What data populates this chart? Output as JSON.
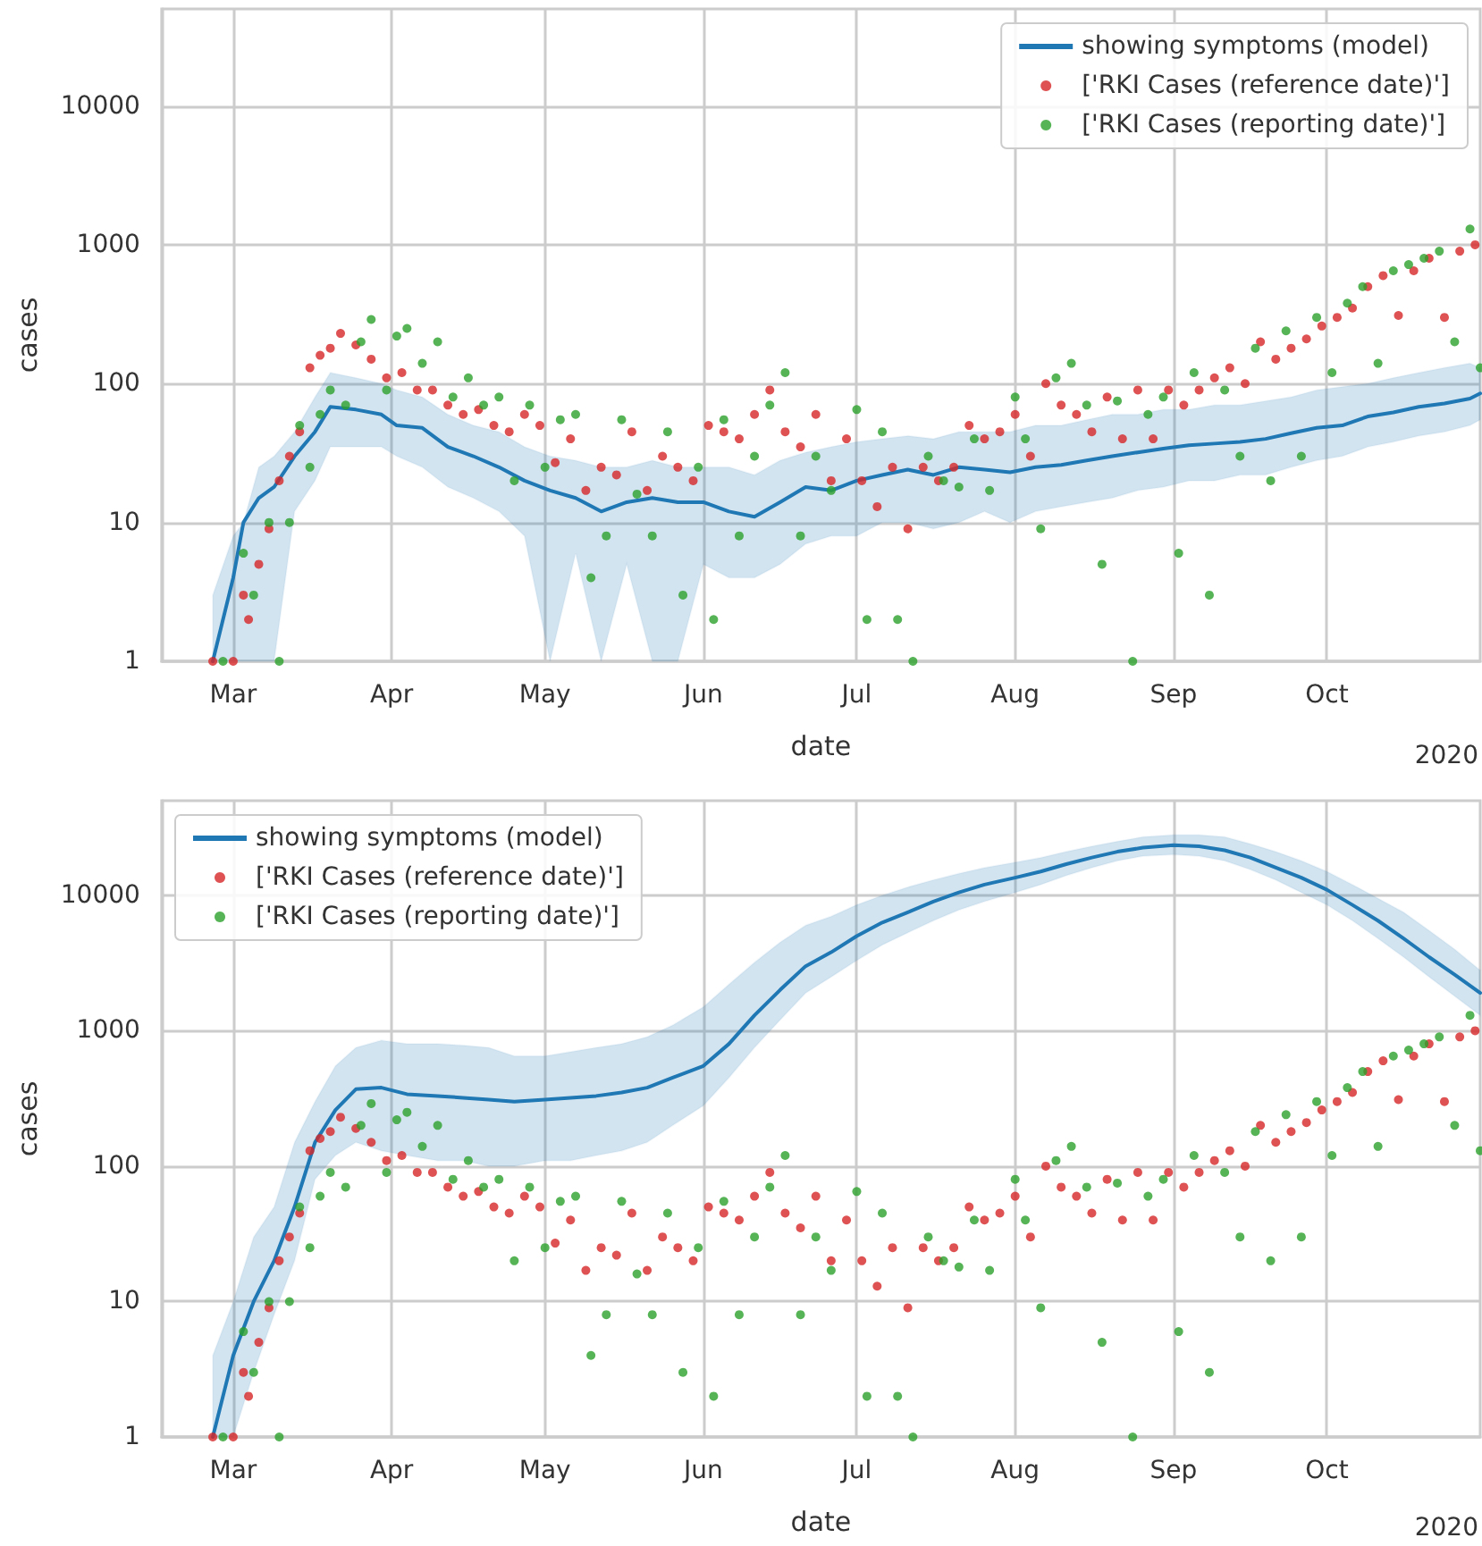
{
  "chart_data": [
    {
      "type": "line",
      "xlabel": "date",
      "ylabel": "cases",
      "annotations": [
        "2020"
      ],
      "log": true,
      "grid": true,
      "legend": "top right",
      "xlim": [
        "2020-02-16",
        "2020-10-31"
      ],
      "xticks": [
        {
          "value": "2020-03-01",
          "label": "Mar"
        },
        {
          "value": "2020-04-01",
          "label": "Apr"
        },
        {
          "value": "2020-05-01",
          "label": "May"
        },
        {
          "value": "2020-06-01",
          "label": "Jun"
        },
        {
          "value": "2020-07-01",
          "label": "Jul"
        },
        {
          "value": "2020-08-01",
          "label": "Aug"
        },
        {
          "value": "2020-09-01",
          "label": "Sep"
        },
        {
          "value": "2020-10-01",
          "label": "Oct"
        }
      ],
      "ylim": [
        1,
        50000
      ],
      "yticks": [
        1,
        10,
        100,
        1000,
        10000
      ],
      "series": [
        {
          "name": "showing symptoms (model)",
          "color": "#1f77b4",
          "x": [
            "2020-02-26",
            "2020-03-01",
            "2020-03-03",
            "2020-03-06",
            "2020-03-09",
            "2020-03-13",
            "2020-03-17",
            "2020-03-20",
            "2020-03-25",
            "2020-03-30",
            "2020-04-02",
            "2020-04-07",
            "2020-04-12",
            "2020-04-17",
            "2020-04-22",
            "2020-04-27",
            "2020-05-02",
            "2020-05-07",
            "2020-05-12",
            "2020-05-17",
            "2020-05-22",
            "2020-05-27",
            "2020-06-01",
            "2020-06-06",
            "2020-06-11",
            "2020-06-16",
            "2020-06-21",
            "2020-06-26",
            "2020-07-01",
            "2020-07-06",
            "2020-07-11",
            "2020-07-16",
            "2020-07-21",
            "2020-07-26",
            "2020-07-31",
            "2020-08-05",
            "2020-08-10",
            "2020-08-15",
            "2020-08-20",
            "2020-08-25",
            "2020-08-30",
            "2020-09-04",
            "2020-09-09",
            "2020-09-14",
            "2020-09-19",
            "2020-09-24",
            "2020-09-29",
            "2020-10-04",
            "2020-10-09",
            "2020-10-14",
            "2020-10-19",
            "2020-10-24",
            "2020-10-29",
            "2020-10-31"
          ],
          "values": [
            1,
            4,
            10,
            15,
            18,
            30,
            45,
            68,
            65,
            60,
            50,
            48,
            35,
            30,
            25,
            20,
            17,
            15,
            12,
            14,
            15,
            14,
            14,
            12,
            11,
            14,
            18,
            17,
            20,
            22,
            24,
            22,
            25,
            24,
            23,
            25,
            26,
            28,
            30,
            32,
            34,
            36,
            37,
            38,
            40,
            44,
            48,
            50,
            58,
            62,
            68,
            72,
            78,
            85
          ],
          "lower": [
            1,
            1,
            1,
            1,
            1,
            12,
            20,
            35,
            35,
            35,
            30,
            25,
            18,
            15,
            12,
            8,
            1,
            6,
            1,
            5,
            1,
            1,
            5,
            4,
            4,
            5,
            7,
            8,
            8,
            10,
            10,
            9,
            10,
            12,
            10,
            12,
            13,
            14,
            15,
            17,
            18,
            20,
            20,
            22,
            22,
            25,
            28,
            30,
            35,
            38,
            42,
            45,
            50,
            55
          ],
          "upper": [
            3,
            8,
            10,
            25,
            30,
            45,
            80,
            120,
            110,
            100,
            90,
            80,
            60,
            50,
            45,
            35,
            30,
            28,
            25,
            25,
            28,
            25,
            25,
            25,
            22,
            28,
            32,
            35,
            38,
            40,
            42,
            40,
            45,
            45,
            45,
            50,
            50,
            55,
            60,
            60,
            65,
            65,
            70,
            70,
            75,
            80,
            90,
            95,
            100,
            110,
            120,
            130,
            140,
            130
          ]
        },
        {
          "name": "['RKI Cases (reference date)']",
          "type": "scatter",
          "color": "#d62728",
          "x": [
            "2020-02-26",
            "2020-03-01",
            "2020-03-03",
            "2020-03-04",
            "2020-03-06",
            "2020-03-08",
            "2020-03-10",
            "2020-03-12",
            "2020-03-14",
            "2020-03-16",
            "2020-03-18",
            "2020-03-20",
            "2020-03-22",
            "2020-03-25",
            "2020-03-28",
            "2020-03-31",
            "2020-04-03",
            "2020-04-06",
            "2020-04-09",
            "2020-04-12",
            "2020-04-15",
            "2020-04-18",
            "2020-04-21",
            "2020-04-24",
            "2020-04-27",
            "2020-04-30",
            "2020-05-03",
            "2020-05-06",
            "2020-05-09",
            "2020-05-12",
            "2020-05-15",
            "2020-05-18",
            "2020-05-21",
            "2020-05-24",
            "2020-05-27",
            "2020-05-30",
            "2020-06-02",
            "2020-06-05",
            "2020-06-08",
            "2020-06-11",
            "2020-06-14",
            "2020-06-17",
            "2020-06-20",
            "2020-06-23",
            "2020-06-26",
            "2020-06-29",
            "2020-07-02",
            "2020-07-05",
            "2020-07-08",
            "2020-07-11",
            "2020-07-14",
            "2020-07-17",
            "2020-07-20",
            "2020-07-23",
            "2020-07-26",
            "2020-07-29",
            "2020-08-01",
            "2020-08-04",
            "2020-08-07",
            "2020-08-10",
            "2020-08-13",
            "2020-08-16",
            "2020-08-19",
            "2020-08-22",
            "2020-08-25",
            "2020-08-28",
            "2020-08-31",
            "2020-09-03",
            "2020-09-06",
            "2020-09-09",
            "2020-09-12",
            "2020-09-15",
            "2020-09-18",
            "2020-09-21",
            "2020-09-24",
            "2020-09-27",
            "2020-09-30",
            "2020-10-03",
            "2020-10-06",
            "2020-10-09",
            "2020-10-12",
            "2020-10-15",
            "2020-10-18",
            "2020-10-21",
            "2020-10-24",
            "2020-10-27",
            "2020-10-30"
          ],
          "values": [
            1,
            1,
            3,
            2,
            5,
            9,
            20,
            30,
            45,
            130,
            160,
            180,
            230,
            190,
            150,
            110,
            120,
            90,
            90,
            70,
            60,
            65,
            50,
            45,
            60,
            50,
            27,
            40,
            17,
            25,
            22,
            45,
            17,
            30,
            25,
            20,
            50,
            45,
            40,
            60,
            90,
            45,
            35,
            60,
            20,
            40,
            20,
            13,
            25,
            9,
            25,
            20,
            25,
            50,
            40,
            45,
            60,
            30,
            100,
            70,
            60,
            45,
            80,
            40,
            90,
            40,
            90,
            70,
            90,
            110,
            130,
            100,
            200,
            150,
            180,
            210,
            260,
            300,
            350,
            500,
            600,
            310,
            650,
            800,
            300,
            900,
            1000
          ]
        },
        {
          "name": "['RKI Cases (reporting date)']",
          "type": "scatter",
          "color": "#2ca02c",
          "x": [
            "2020-02-28",
            "2020-03-03",
            "2020-03-05",
            "2020-03-08",
            "2020-03-10",
            "2020-03-12",
            "2020-03-14",
            "2020-03-16",
            "2020-03-18",
            "2020-03-20",
            "2020-03-23",
            "2020-03-26",
            "2020-03-28",
            "2020-03-31",
            "2020-04-02",
            "2020-04-04",
            "2020-04-07",
            "2020-04-10",
            "2020-04-13",
            "2020-04-16",
            "2020-04-19",
            "2020-04-22",
            "2020-04-25",
            "2020-04-28",
            "2020-05-01",
            "2020-05-04",
            "2020-05-07",
            "2020-05-10",
            "2020-05-13",
            "2020-05-16",
            "2020-05-19",
            "2020-05-22",
            "2020-05-25",
            "2020-05-28",
            "2020-05-31",
            "2020-06-03",
            "2020-06-05",
            "2020-06-08",
            "2020-06-11",
            "2020-06-14",
            "2020-06-17",
            "2020-06-20",
            "2020-06-23",
            "2020-06-26",
            "2020-07-01",
            "2020-07-03",
            "2020-07-06",
            "2020-07-09",
            "2020-07-12",
            "2020-07-15",
            "2020-07-18",
            "2020-07-21",
            "2020-07-24",
            "2020-07-27",
            "2020-08-01",
            "2020-08-03",
            "2020-08-06",
            "2020-08-09",
            "2020-08-12",
            "2020-08-15",
            "2020-08-18",
            "2020-08-21",
            "2020-08-24",
            "2020-08-27",
            "2020-08-30",
            "2020-09-02",
            "2020-09-05",
            "2020-09-08",
            "2020-09-11",
            "2020-09-14",
            "2020-09-17",
            "2020-09-20",
            "2020-09-23",
            "2020-09-26",
            "2020-09-29",
            "2020-10-02",
            "2020-10-05",
            "2020-10-08",
            "2020-10-11",
            "2020-10-14",
            "2020-10-17",
            "2020-10-20",
            "2020-10-23",
            "2020-10-26",
            "2020-10-29",
            "2020-10-31"
          ],
          "values": [
            1,
            6,
            3,
            10,
            1,
            10,
            50,
            25,
            60,
            90,
            70,
            200,
            290,
            90,
            220,
            250,
            140,
            200,
            80,
            110,
            70,
            80,
            20,
            70,
            25,
            55,
            60,
            4,
            8,
            55,
            16,
            8,
            45,
            3,
            25,
            2,
            55,
            8,
            30,
            70,
            120,
            8,
            30,
            17,
            65,
            2,
            45,
            2,
            1,
            30,
            20,
            18,
            40,
            17,
            80,
            40,
            9,
            110,
            140,
            70,
            5,
            75,
            1,
            60,
            80,
            6,
            120,
            3,
            90,
            30,
            180,
            20,
            240,
            30,
            300,
            120,
            380,
            500,
            140,
            650,
            720,
            800,
            900,
            200,
            1300,
            130
          ]
        }
      ]
    },
    {
      "type": "line",
      "xlabel": "date",
      "ylabel": "cases",
      "annotations": [
        "2020"
      ],
      "log": true,
      "grid": true,
      "legend": "top left",
      "xlim": [
        "2020-02-16",
        "2020-10-31"
      ],
      "xticks": [
        {
          "value": "2020-03-01",
          "label": "Mar"
        },
        {
          "value": "2020-04-01",
          "label": "Apr"
        },
        {
          "value": "2020-05-01",
          "label": "May"
        },
        {
          "value": "2020-06-01",
          "label": "Jun"
        },
        {
          "value": "2020-07-01",
          "label": "Jul"
        },
        {
          "value": "2020-08-01",
          "label": "Aug"
        },
        {
          "value": "2020-09-01",
          "label": "Sep"
        },
        {
          "value": "2020-10-01",
          "label": "Oct"
        }
      ],
      "ylim": [
        1,
        50000
      ],
      "yticks": [
        1,
        10,
        100,
        1000,
        10000
      ],
      "series": [
        {
          "name": "showing symptoms (model)",
          "color": "#1f77b4",
          "x": [
            "2020-02-26",
            "2020-03-01",
            "2020-03-05",
            "2020-03-09",
            "2020-03-13",
            "2020-03-17",
            "2020-03-21",
            "2020-03-25",
            "2020-03-30",
            "2020-04-04",
            "2020-04-10",
            "2020-04-15",
            "2020-04-20",
            "2020-04-25",
            "2020-05-01",
            "2020-05-06",
            "2020-05-11",
            "2020-05-16",
            "2020-05-21",
            "2020-05-26",
            "2020-06-01",
            "2020-06-06",
            "2020-06-11",
            "2020-06-16",
            "2020-06-21",
            "2020-06-26",
            "2020-07-01",
            "2020-07-06",
            "2020-07-11",
            "2020-07-16",
            "2020-07-21",
            "2020-07-26",
            "2020-08-01",
            "2020-08-06",
            "2020-08-11",
            "2020-08-16",
            "2020-08-21",
            "2020-08-26",
            "2020-09-01",
            "2020-09-06",
            "2020-09-11",
            "2020-09-16",
            "2020-09-21",
            "2020-09-26",
            "2020-10-01",
            "2020-10-06",
            "2020-10-11",
            "2020-10-16",
            "2020-10-21",
            "2020-10-26",
            "2020-10-31"
          ],
          "values": [
            1,
            4,
            10,
            20,
            50,
            150,
            260,
            370,
            380,
            340,
            330,
            320,
            310,
            300,
            310,
            320,
            330,
            350,
            380,
            450,
            550,
            800,
            1300,
            2000,
            3000,
            3800,
            5000,
            6300,
            7500,
            9000,
            10500,
            12000,
            13500,
            15000,
            17000,
            19000,
            21000,
            22500,
            23500,
            23000,
            21500,
            19000,
            16000,
            13500,
            11000,
            8500,
            6500,
            4800,
            3500,
            2600,
            1900
          ],
          "lower": [
            1,
            1,
            3,
            8,
            20,
            80,
            120,
            150,
            130,
            120,
            110,
            110,
            100,
            100,
            110,
            110,
            120,
            130,
            150,
            200,
            280,
            450,
            750,
            1200,
            1900,
            2500,
            3300,
            4300,
            5300,
            6500,
            7800,
            9000,
            10500,
            12000,
            14000,
            16000,
            18000,
            19500,
            20000,
            19500,
            18000,
            15500,
            13000,
            10500,
            8500,
            6500,
            4800,
            3500,
            2500,
            1800,
            1300
          ],
          "upper": [
            4,
            10,
            30,
            50,
            150,
            300,
            550,
            750,
            850,
            800,
            800,
            780,
            750,
            650,
            650,
            700,
            750,
            800,
            900,
            1100,
            1500,
            2200,
            3200,
            4500,
            6000,
            7000,
            8500,
            10000,
            11500,
            13000,
            14500,
            16000,
            17500,
            19000,
            21000,
            23000,
            25000,
            27000,
            28000,
            28000,
            27000,
            24000,
            21000,
            18000,
            15000,
            12000,
            9500,
            7500,
            5500,
            4000,
            2800
          ]
        },
        {
          "name": "['RKI Cases (reference date)']",
          "type": "scatter",
          "color": "#d62728",
          "x": [
            "2020-02-26",
            "2020-03-01",
            "2020-03-03",
            "2020-03-04",
            "2020-03-06",
            "2020-03-08",
            "2020-03-10",
            "2020-03-12",
            "2020-03-14",
            "2020-03-16",
            "2020-03-18",
            "2020-03-20",
            "2020-03-22",
            "2020-03-25",
            "2020-03-28",
            "2020-03-31",
            "2020-04-03",
            "2020-04-06",
            "2020-04-09",
            "2020-04-12",
            "2020-04-15",
            "2020-04-18",
            "2020-04-21",
            "2020-04-24",
            "2020-04-27",
            "2020-04-30",
            "2020-05-03",
            "2020-05-06",
            "2020-05-09",
            "2020-05-12",
            "2020-05-15",
            "2020-05-18",
            "2020-05-21",
            "2020-05-24",
            "2020-05-27",
            "2020-05-30",
            "2020-06-02",
            "2020-06-05",
            "2020-06-08",
            "2020-06-11",
            "2020-06-14",
            "2020-06-17",
            "2020-06-20",
            "2020-06-23",
            "2020-06-26",
            "2020-06-29",
            "2020-07-02",
            "2020-07-05",
            "2020-07-08",
            "2020-07-11",
            "2020-07-14",
            "2020-07-17",
            "2020-07-20",
            "2020-07-23",
            "2020-07-26",
            "2020-07-29",
            "2020-08-01",
            "2020-08-04",
            "2020-08-07",
            "2020-08-10",
            "2020-08-13",
            "2020-08-16",
            "2020-08-19",
            "2020-08-22",
            "2020-08-25",
            "2020-08-28",
            "2020-08-31",
            "2020-09-03",
            "2020-09-06",
            "2020-09-09",
            "2020-09-12",
            "2020-09-15",
            "2020-09-18",
            "2020-09-21",
            "2020-09-24",
            "2020-09-27",
            "2020-09-30",
            "2020-10-03",
            "2020-10-06",
            "2020-10-09",
            "2020-10-12",
            "2020-10-15",
            "2020-10-18",
            "2020-10-21",
            "2020-10-24",
            "2020-10-27",
            "2020-10-30"
          ],
          "values": [
            1,
            1,
            3,
            2,
            5,
            9,
            20,
            30,
            45,
            130,
            160,
            180,
            230,
            190,
            150,
            110,
            120,
            90,
            90,
            70,
            60,
            65,
            50,
            45,
            60,
            50,
            27,
            40,
            17,
            25,
            22,
            45,
            17,
            30,
            25,
            20,
            50,
            45,
            40,
            60,
            90,
            45,
            35,
            60,
            20,
            40,
            20,
            13,
            25,
            9,
            25,
            20,
            25,
            50,
            40,
            45,
            60,
            30,
            100,
            70,
            60,
            45,
            80,
            40,
            90,
            40,
            90,
            70,
            90,
            110,
            130,
            100,
            200,
            150,
            180,
            210,
            260,
            300,
            350,
            500,
            600,
            310,
            650,
            800,
            300,
            900,
            1000
          ]
        },
        {
          "name": "['RKI Cases (reporting date)']",
          "type": "scatter",
          "color": "#2ca02c",
          "x": [
            "2020-02-28",
            "2020-03-03",
            "2020-03-05",
            "2020-03-08",
            "2020-03-10",
            "2020-03-12",
            "2020-03-14",
            "2020-03-16",
            "2020-03-18",
            "2020-03-20",
            "2020-03-23",
            "2020-03-26",
            "2020-03-28",
            "2020-03-31",
            "2020-04-02",
            "2020-04-04",
            "2020-04-07",
            "2020-04-10",
            "2020-04-13",
            "2020-04-16",
            "2020-04-19",
            "2020-04-22",
            "2020-04-25",
            "2020-04-28",
            "2020-05-01",
            "2020-05-04",
            "2020-05-07",
            "2020-05-10",
            "2020-05-13",
            "2020-05-16",
            "2020-05-19",
            "2020-05-22",
            "2020-05-25",
            "2020-05-28",
            "2020-05-31",
            "2020-06-03",
            "2020-06-05",
            "2020-06-08",
            "2020-06-11",
            "2020-06-14",
            "2020-06-17",
            "2020-06-20",
            "2020-06-23",
            "2020-06-26",
            "2020-07-01",
            "2020-07-03",
            "2020-07-06",
            "2020-07-09",
            "2020-07-12",
            "2020-07-15",
            "2020-07-18",
            "2020-07-21",
            "2020-07-24",
            "2020-07-27",
            "2020-08-01",
            "2020-08-03",
            "2020-08-06",
            "2020-08-09",
            "2020-08-12",
            "2020-08-15",
            "2020-08-18",
            "2020-08-21",
            "2020-08-24",
            "2020-08-27",
            "2020-08-30",
            "2020-09-02",
            "2020-09-05",
            "2020-09-08",
            "2020-09-11",
            "2020-09-14",
            "2020-09-17",
            "2020-09-20",
            "2020-09-23",
            "2020-09-26",
            "2020-09-29",
            "2020-10-02",
            "2020-10-05",
            "2020-10-08",
            "2020-10-11",
            "2020-10-14",
            "2020-10-17",
            "2020-10-20",
            "2020-10-23",
            "2020-10-26",
            "2020-10-29",
            "2020-10-31"
          ],
          "values": [
            1,
            6,
            3,
            10,
            1,
            10,
            50,
            25,
            60,
            90,
            70,
            200,
            290,
            90,
            220,
            250,
            140,
            200,
            80,
            110,
            70,
            80,
            20,
            70,
            25,
            55,
            60,
            4,
            8,
            55,
            16,
            8,
            45,
            3,
            25,
            2,
            55,
            8,
            30,
            70,
            120,
            8,
            30,
            17,
            65,
            2,
            45,
            2,
            1,
            30,
            20,
            18,
            40,
            17,
            80,
            40,
            9,
            110,
            140,
            70,
            5,
            75,
            1,
            60,
            80,
            6,
            120,
            3,
            90,
            30,
            180,
            20,
            240,
            30,
            300,
            120,
            380,
            500,
            140,
            650,
            720,
            800,
            900,
            200,
            1300,
            130
          ]
        }
      ]
    }
  ]
}
